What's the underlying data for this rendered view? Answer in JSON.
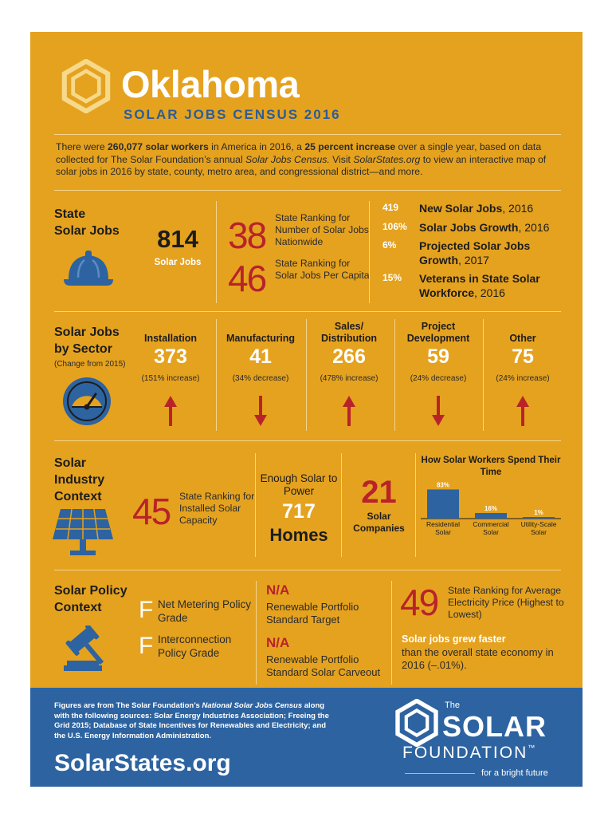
{
  "header": {
    "title": "Oklahoma",
    "subtitle": "SOLAR JOBS CENSUS 2016"
  },
  "intro": {
    "p1": "There were ",
    "b1": "260,077 solar workers",
    "p2": " in America in 2016, a ",
    "b2": "25 percent increase",
    "p3": " over a single year, based on data collected for The Solar Foundation’s annual ",
    "i1": "Solar Jobs Census.",
    "p4": " Visit ",
    "i2": "SolarStates.org",
    "p5": " to view an interactive map of solar jobs in 2016 by state, county, metro area, and congressional district—and more."
  },
  "state_jobs": {
    "title_line1": "State",
    "title_line2": "Solar Jobs",
    "count": "814",
    "count_label": "Solar Jobs",
    "rank_national": "38",
    "rank_national_text": "State Ranking for Number of Solar Jobs Nationwide",
    "rank_capita": "46",
    "rank_capita_text": "State Ranking for Solar Jobs Per Capita",
    "stats": [
      {
        "value": "419",
        "bold": "New Solar Jobs",
        "rest": ", 2016"
      },
      {
        "value": "106%",
        "bold": "Solar Jobs Growth",
        "rest": ", 2016"
      },
      {
        "value": "6%",
        "bold": "Projected Solar Jobs Growth",
        "rest": ", 2017"
      },
      {
        "value": "15%",
        "bold": "Veterans in State Solar Workforce",
        "rest": ", 2016"
      }
    ]
  },
  "sectors": {
    "title_line1": "Solar Jobs",
    "title_line2": "by Sector",
    "subtitle": "(Change from 2015)",
    "items": [
      {
        "name": "Installation",
        "value": "373",
        "change": "(151% increase)",
        "direction": "up"
      },
      {
        "name": "Manufacturing",
        "value": "41",
        "change": "(34% decrease)",
        "direction": "down"
      },
      {
        "name": "Sales/ Distribution",
        "value": "266",
        "change": "(478% increase)",
        "direction": "up"
      },
      {
        "name": "Project Development",
        "value": "59",
        "change": "(24% decrease)",
        "direction": "down"
      },
      {
        "name": "Other",
        "value": "75",
        "change": "(24% increase)",
        "direction": "up"
      }
    ]
  },
  "industry": {
    "title_line1": "Solar",
    "title_line2": "Industry",
    "title_line3": "Context",
    "capacity_rank": "45",
    "capacity_text": "State Ranking for Installed Solar Capacity",
    "homes_pre": "Enough Solar to Power",
    "homes_num": "717",
    "homes_label": "Homes",
    "companies_num": "21",
    "companies_label": "Solar Companies"
  },
  "chart_data": {
    "type": "bar",
    "title": "How Solar Workers Spend Their Time",
    "categories": [
      "Residential Solar",
      "Commercial Solar",
      "Utility-Scale Solar"
    ],
    "values": [
      83,
      16,
      1
    ],
    "labels": [
      "83%",
      "16%",
      "1%"
    ],
    "ylim": [
      0,
      100
    ],
    "color": "#2d63a0"
  },
  "policy": {
    "title_line1": "Solar Policy",
    "title_line2": "Context",
    "net_metering_grade": "F",
    "net_metering_text": "Net Metering Policy Grade",
    "interconnection_grade": "F",
    "interconnection_text": "Interconnection Policy Grade",
    "rps_target": "N/A",
    "rps_target_text": "Renewable Portfolio Standard Target",
    "rps_carveout": "N/A",
    "rps_carveout_text": "Renewable Portfolio Standard Solar Carveout",
    "price_rank": "49",
    "price_text": "State Ranking for Average Electricity Price (Highest to Lowest)",
    "grew_bold": "Solar jobs grew faster",
    "grew_text": "than the overall state economy in 2016 (–.01%)."
  },
  "footer": {
    "note_a": "Figures are from The Solar Foundation’s ",
    "note_i": "National Solar Jobs Census",
    "note_b": " along with the following sources: Solar Energy Industries Association; Freeing the Grid 2015; Database of State Incentives for Renewables and Electricity; and the U.S. Energy Information Administration.",
    "site": "SolarStates.org",
    "org_the": "The",
    "org_solar": "SOLAR",
    "org_foundation": "FOUNDATION",
    "org_tm": "™",
    "org_tagline": "for a bright future"
  },
  "colors": {
    "background": "#e5a21f",
    "accent_red": "#b8232a",
    "accent_blue": "#2d63a0"
  },
  "icons": [
    "hexagon-logo-icon",
    "hard-hat-icon",
    "gauge-icon",
    "solar-panel-icon",
    "gavel-icon"
  ]
}
